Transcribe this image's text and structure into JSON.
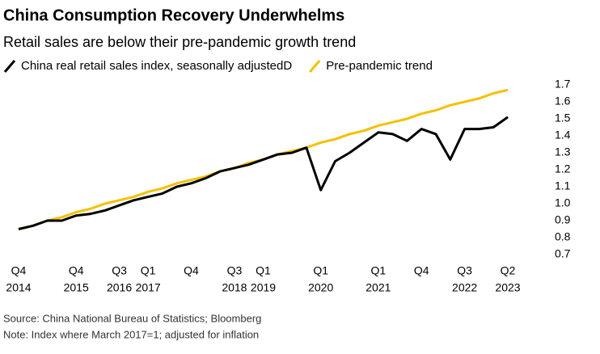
{
  "chart_data": {
    "type": "line",
    "title": "China Consumption Recovery Underwhelms",
    "subtitle": "Retail sales are below their pre-pandemic growth trend",
    "categories": [
      {
        "quarter": "Q4",
        "year": "2014"
      },
      null,
      null,
      null,
      {
        "quarter": "Q4",
        "year": "2015"
      },
      null,
      null,
      {
        "quarter": "Q3",
        "year": "2016"
      },
      null,
      {
        "quarter": "Q1",
        "year": "2017"
      },
      null,
      null,
      {
        "quarter": "Q4"
      },
      null,
      null,
      {
        "quarter": "Q3",
        "year": "2018"
      },
      null,
      {
        "quarter": "Q1",
        "year": "2019"
      },
      null,
      null,
      null,
      {
        "quarter": "Q1",
        "year": "2020"
      },
      null,
      null,
      null,
      {
        "quarter": "Q1",
        "year": "2021"
      },
      null,
      null,
      {
        "quarter": "Q4"
      },
      null,
      null,
      {
        "quarter": "Q3",
        "year": "2022"
      },
      null,
      null,
      {
        "quarter": "Q2",
        "year": "2023"
      }
    ],
    "series": [
      {
        "name": "Pre-pandemic trend",
        "color": "#f5c000",
        "values": [
          0.85,
          0.87,
          0.9,
          0.92,
          0.95,
          0.97,
          1.0,
          1.02,
          1.04,
          1.07,
          1.09,
          1.12,
          1.14,
          1.16,
          1.19,
          1.21,
          1.24,
          1.26,
          1.29,
          1.31,
          1.33,
          1.36,
          1.38,
          1.41,
          1.43,
          1.46,
          1.48,
          1.5,
          1.53,
          1.55,
          1.58,
          1.6,
          1.62,
          1.65,
          1.67
        ]
      },
      {
        "name": "China real retail sales index, seasonally adjustedD",
        "color": "#000000",
        "values": [
          0.85,
          0.87,
          0.9,
          0.9,
          0.93,
          0.94,
          0.96,
          0.99,
          1.02,
          1.04,
          1.06,
          1.1,
          1.12,
          1.15,
          1.19,
          1.21,
          1.23,
          1.26,
          1.29,
          1.3,
          1.33,
          1.08,
          1.25,
          1.3,
          1.36,
          1.42,
          1.41,
          1.37,
          1.44,
          1.41,
          1.26,
          1.44,
          1.44,
          1.45,
          1.51
        ]
      }
    ],
    "ylim": [
      0.7,
      1.7
    ],
    "yticks": [
      0.7,
      0.8,
      0.9,
      {
        "value": 1,
        "label": "1.0"
      },
      1.1,
      1.2,
      1.3,
      1.4,
      1.5,
      1.6,
      1.7
    ],
    "grid": false,
    "legend": "top",
    "source": "Source: China National Bureau of Statistics; Bloomberg",
    "note": "Note: Index where March 2017=1; adjusted for inflation"
  }
}
